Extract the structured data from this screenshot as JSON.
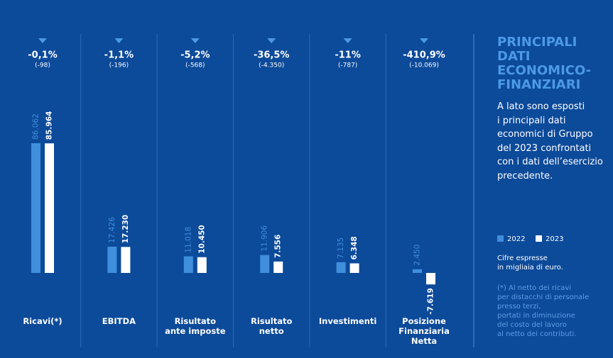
{
  "title": "PRINCIPALI\nDATI\nECONOMICO-\nFINANZIARI",
  "description": "A lato sono esposti\ni principali dati\neconomici di Gruppo\ndel 2023 confrontati\ncon i dati dell’esercizio\nprecedente.",
  "units_note": "Cifre espresse\nin migliaia di euro.",
  "footnote": "(*) Al netto dei ricavi\nper distacchi di personale\npresso terzi,\nportati in diminuzione\ndel costo del lavoro\nal netto dei contributi.",
  "chart_data": {
    "type": "bar",
    "categories": [
      "Ricavi(*)",
      "EBITDA",
      "Risultato\nante imposte",
      "Risultato\nnetto",
      "Investimenti",
      "Posizione\nFinanziaria Netta"
    ],
    "changes": [
      "-0,1%",
      "-1,1%",
      "-5,2%",
      "-36,5%",
      "-11%",
      "-410,9%"
    ],
    "changes_abs": [
      "(-98)",
      "(-196)",
      "(-568)",
      "(-4.350)",
      "(-787)",
      "(-10.069)"
    ],
    "series": [
      {
        "name": "2022",
        "color": "#3f8fdc",
        "values": [
          86062,
          17426,
          11018,
          11906,
          7135,
          2450
        ],
        "value_labels": [
          "86.062",
          "17.426",
          "11.018",
          "11.906",
          "7.135",
          "2.450"
        ]
      },
      {
        "name": "2023",
        "color": "#ffffff",
        "values": [
          85964,
          17230,
          10450,
          7556,
          6348,
          -7619
        ],
        "value_labels": [
          "85.964",
          "17.230",
          "10.450",
          "7.556",
          "6.348",
          "-7.619"
        ]
      }
    ]
  }
}
